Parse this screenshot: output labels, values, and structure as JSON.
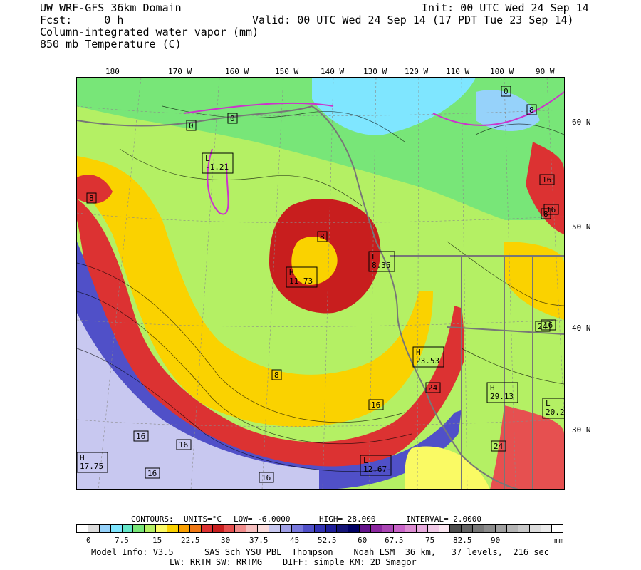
{
  "header": {
    "model": "UW WRF-GFS 36km Domain",
    "init": "Init: 00 UTC Wed 24 Sep 14",
    "fcst": "Fcst:     0 h",
    "valid": "Valid: 00 UTC Wed 24 Sep 14 (17 PDT Tue 23 Sep 14)",
    "field1": "Column-integrated water vapor (mm)",
    "field2": "850 mb Temperature (C)"
  },
  "lon_labels": [
    "180",
    "170 W",
    "160 W",
    "150 W",
    "140 W",
    "130 W",
    "120 W",
    "110 W",
    "100 W",
    "90 W"
  ],
  "lat_labels": [
    "60 N",
    "50 N",
    "40 N",
    "30 N"
  ],
  "map_labels": [
    {
      "text": "L\n-1.21",
      "type": "low"
    },
    {
      "text": "H\n11.73",
      "type": "high"
    },
    {
      "text": "L\n8.35",
      "type": "low"
    },
    {
      "text": "H\n23.53",
      "type": "high"
    },
    {
      "text": "H\n29.13",
      "type": "high"
    },
    {
      "text": "L\n20.2",
      "type": "low"
    },
    {
      "text": "H\n17.75",
      "type": "high"
    },
    {
      "text": "L\n12.67",
      "type": "low"
    }
  ],
  "contour_labels": [
    "0",
    "0",
    "0",
    "8",
    "8",
    "8",
    "8",
    "8",
    "16",
    "16",
    "16",
    "16",
    "16",
    "16",
    "16",
    "16",
    "24",
    "24",
    "24"
  ],
  "contours_line": {
    "title": "CONTOURS:",
    "units": "UNITS=°C",
    "low": "LOW=  -6.0000",
    "high": "HIGH=  28.000",
    "interval": "INTERVAL=   2.0000"
  },
  "colorbar": {
    "colors": [
      "#ffffff",
      "#dcdcdc",
      "#96d2fa",
      "#7fe6ff",
      "#64e6c8",
      "#78e678",
      "#b4f064",
      "#fafa64",
      "#fad200",
      "#faa000",
      "#f07814",
      "#dc3232",
      "#c81e1e",
      "#e65050",
      "#f08c8c",
      "#f5bebe",
      "#fadcdc",
      "#c8c8f0",
      "#a0a0e6",
      "#7878dc",
      "#5050c8",
      "#3232b4",
      "#1e1e9a",
      "#141478",
      "#000064",
      "#64148c",
      "#8c28a0",
      "#aa46b4",
      "#c864c8",
      "#dc8cd2",
      "#e6aadc",
      "#f0c8e6",
      "#fae6f0",
      "#505050",
      "#646464",
      "#787878",
      "#8c8c8c",
      "#a0a0a0",
      "#b4b4b4",
      "#c8c8c8",
      "#dcdcdc",
      "#ebebeb",
      "#ffffff"
    ],
    "ticks": [
      "0",
      "7.5",
      "15",
      "22.5",
      "30",
      "37.5",
      "45",
      "52.5",
      "60",
      "67.5",
      "75",
      "82.5",
      "90"
    ],
    "units": "mm"
  },
  "footer": {
    "line1": "Model Info: V3.5      SAS Sch YSU PBL  Thompson    Noah LSM  36 km,   37 levels,  216 sec",
    "line2": "LW: RRTM SW: RRTMG    DIFF: simple KM: 2D Smagor"
  }
}
